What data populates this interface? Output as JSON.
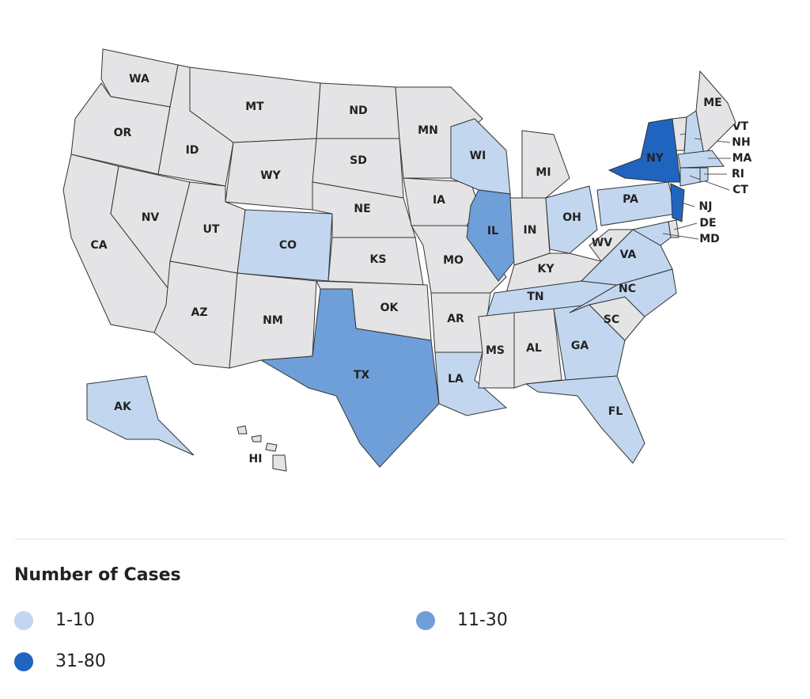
{
  "map": {
    "states": [
      {
        "label": "WA",
        "cases": null
      },
      {
        "label": "OR",
        "cases": null
      },
      {
        "label": "CA",
        "cases": null
      },
      {
        "label": "NV",
        "cases": null
      },
      {
        "label": "ID",
        "cases": null
      },
      {
        "label": "MT",
        "cases": null
      },
      {
        "label": "WY",
        "cases": null
      },
      {
        "label": "UT",
        "cases": null
      },
      {
        "label": "AZ",
        "cases": null
      },
      {
        "label": "CO",
        "cases": "1-10"
      },
      {
        "label": "NM",
        "cases": null
      },
      {
        "label": "ND",
        "cases": null
      },
      {
        "label": "SD",
        "cases": null
      },
      {
        "label": "NE",
        "cases": null
      },
      {
        "label": "KS",
        "cases": null
      },
      {
        "label": "OK",
        "cases": null
      },
      {
        "label": "TX",
        "cases": "11-30"
      },
      {
        "label": "MN",
        "cases": null
      },
      {
        "label": "IA",
        "cases": null
      },
      {
        "label": "MO",
        "cases": null
      },
      {
        "label": "AR",
        "cases": null
      },
      {
        "label": "LA",
        "cases": "1-10"
      },
      {
        "label": "WI",
        "cases": "1-10"
      },
      {
        "label": "IL",
        "cases": "11-30"
      },
      {
        "label": "MI",
        "cases": null
      },
      {
        "label": "IN",
        "cases": null
      },
      {
        "label": "OH",
        "cases": "1-10"
      },
      {
        "label": "KY",
        "cases": null
      },
      {
        "label": "TN",
        "cases": "1-10"
      },
      {
        "label": "MS",
        "cases": null
      },
      {
        "label": "AL",
        "cases": null
      },
      {
        "label": "GA",
        "cases": "1-10"
      },
      {
        "label": "FL",
        "cases": "1-10"
      },
      {
        "label": "SC",
        "cases": null
      },
      {
        "label": "NC",
        "cases": "1-10"
      },
      {
        "label": "VA",
        "cases": "1-10"
      },
      {
        "label": "WV",
        "cases": null
      },
      {
        "label": "PA",
        "cases": "1-10"
      },
      {
        "label": "NY",
        "cases": "31-80"
      },
      {
        "label": "VT",
        "cases": null
      },
      {
        "label": "NH",
        "cases": "1-10"
      },
      {
        "label": "ME",
        "cases": null
      },
      {
        "label": "MA",
        "cases": "1-10"
      },
      {
        "label": "CT",
        "cases": "1-10"
      },
      {
        "label": "RI",
        "cases": "1-10"
      },
      {
        "label": "NJ",
        "cases": "31-80"
      },
      {
        "label": "DE",
        "cases": null
      },
      {
        "label": "MD",
        "cases": "1-10"
      },
      {
        "label": "AK",
        "cases": "1-10"
      },
      {
        "label": "HI",
        "cases": null
      }
    ],
    "no_data_color": "#e4e4e6"
  },
  "legend": {
    "title": "Number of Cases",
    "items": [
      {
        "label": "1-10",
        "color": "#c2d7ef"
      },
      {
        "label": "11-30",
        "color": "#6f9fd8"
      },
      {
        "label": "31-80",
        "color": "#1f65c0"
      }
    ]
  }
}
